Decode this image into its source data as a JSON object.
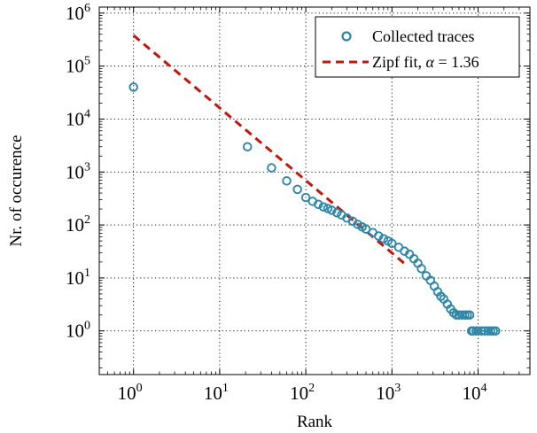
{
  "chart_data": {
    "type": "scatter",
    "xlabel": "Rank",
    "ylabel": "Nr. of occurence",
    "xscale": "log",
    "yscale": "log",
    "xlim": [
      0.4,
      40000
    ],
    "ylim": [
      0.15,
      1300000
    ],
    "x_ticks": [
      {
        "base": "10",
        "exp": "0",
        "value": 1
      },
      {
        "base": "10",
        "exp": "1",
        "value": 10
      },
      {
        "base": "10",
        "exp": "2",
        "value": 100
      },
      {
        "base": "10",
        "exp": "3",
        "value": 1000
      },
      {
        "base": "10",
        "exp": "4",
        "value": 10000
      }
    ],
    "y_ticks": [
      {
        "base": "10",
        "exp": "0",
        "value": 1
      },
      {
        "base": "10",
        "exp": "1",
        "value": 10
      },
      {
        "base": "10",
        "exp": "2",
        "value": 100
      },
      {
        "base": "10",
        "exp": "3",
        "value": 1000
      },
      {
        "base": "10",
        "exp": "4",
        "value": 10000
      },
      {
        "base": "10",
        "exp": "5",
        "value": 100000
      },
      {
        "base": "10",
        "exp": "6",
        "value": 1000000
      }
    ],
    "grid": true,
    "legend_position": "top-right",
    "series": [
      {
        "name": "Collected traces",
        "style": "markers",
        "marker": "open-circle",
        "color": "#2e86a8",
        "x": [
          1,
          21,
          40,
          60,
          80,
          100,
          120,
          140,
          160,
          180,
          200,
          230,
          260,
          300,
          350,
          400,
          450,
          500,
          600,
          700,
          800,
          900,
          1000,
          1200,
          1400,
          1600,
          1800,
          2000,
          2200,
          2500,
          2800,
          3100,
          3400,
          3700,
          4000,
          4400,
          4800,
          5200,
          5600,
          6000,
          6500,
          7000,
          7500,
          8000,
          8400,
          8800,
          9500,
          10000,
          11000,
          12000,
          13000,
          14000,
          15000,
          16000
        ],
        "y": [
          40000,
          3000,
          1200,
          680,
          470,
          330,
          280,
          245,
          220,
          205,
          190,
          170,
          155,
          135,
          118,
          103,
          92,
          84,
          72,
          62,
          55,
          50,
          45,
          38,
          32,
          28,
          23,
          19,
          15,
          11,
          9,
          7,
          5.5,
          4.5,
          4,
          3.2,
          2.6,
          2.2,
          2,
          2,
          2,
          2,
          2,
          2,
          1,
          1,
          1,
          1,
          1,
          1,
          1,
          1,
          1,
          1
        ]
      },
      {
        "name": "Zipf fit, α = 1.36",
        "label_prefix": "Zipf fit, ",
        "label_symbol": "α",
        "label_suffix": " = 1.36",
        "style": "dashed-line",
        "color": "#c4140c",
        "x": [
          1,
          1500
        ],
        "y": [
          380000,
          17
        ]
      }
    ]
  }
}
